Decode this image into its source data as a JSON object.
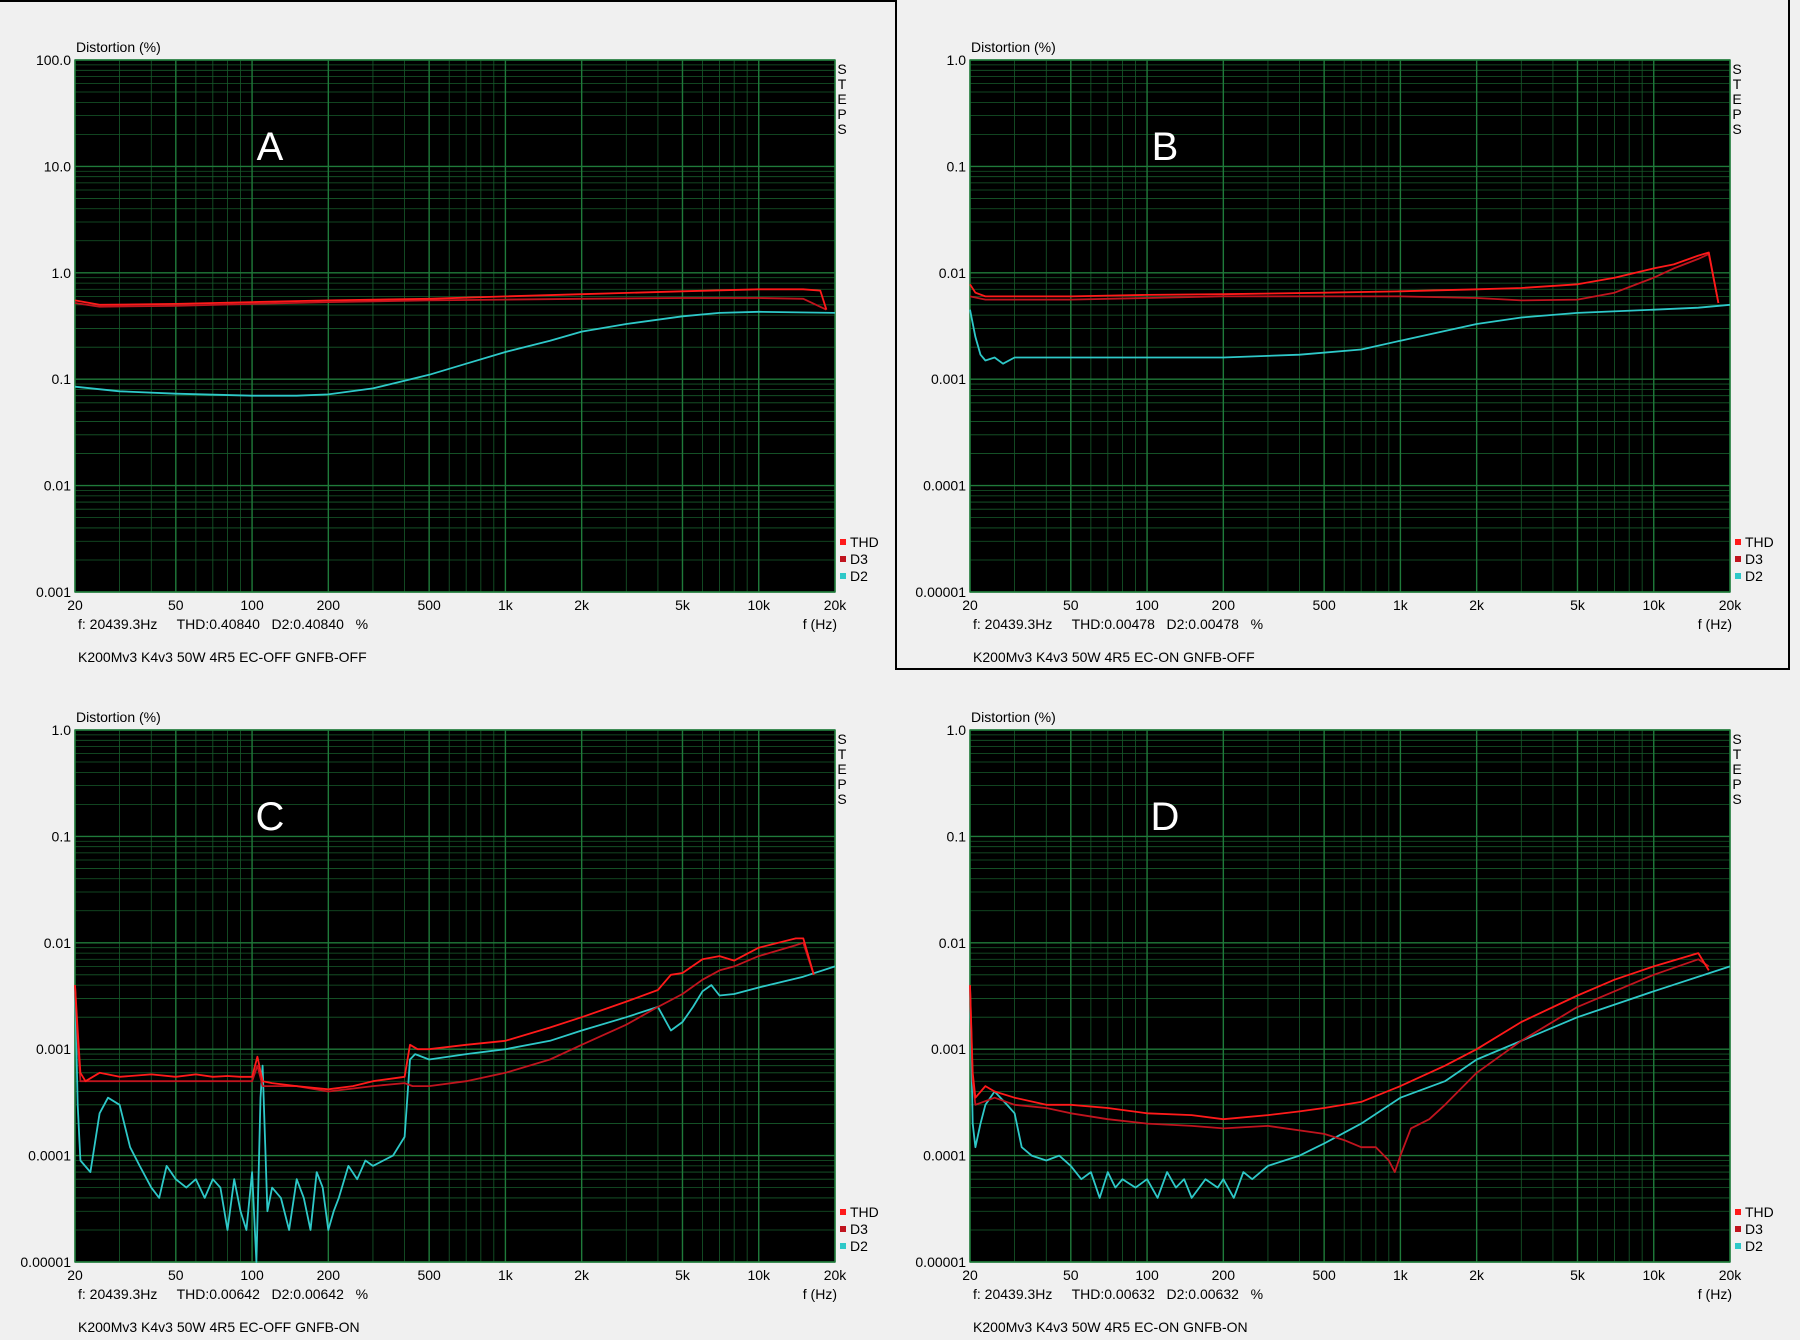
{
  "colors": {
    "plot_bg": "#000000",
    "grid": "#1f7a3a",
    "thd": "#ff1a1a",
    "d3": "#c0141e",
    "d2": "#2ec8c8",
    "frame_text": "#000000",
    "letter": "#ffffff"
  },
  "chart_data": [
    {
      "type": "line",
      "letter": "A",
      "ylabel": "Distortion (%)",
      "xlabel": "f (Hz)",
      "side_label": "STEPS",
      "readout": "f: 20439.3Hz     THD:0.40840   D2:0.40840   %",
      "caption": "K200Mv3 K4v3 50W 4R5 EC-OFF GNFB-OFF",
      "x_scale": "log",
      "y_scale": "log",
      "xlim": [
        20,
        20000
      ],
      "ylim": [
        0.001,
        100
      ],
      "x_ticks": [
        20,
        50,
        100,
        200,
        500,
        1000,
        2000,
        5000,
        10000,
        20000
      ],
      "x_tick_labels": [
        "20",
        "50",
        "100",
        "200",
        "500",
        "1k",
        "2k",
        "5k",
        "10k",
        "20k"
      ],
      "y_ticks": [
        0.001,
        0.01,
        0.1,
        1,
        10,
        100
      ],
      "y_tick_labels": [
        "0.001",
        "0.01",
        "0.1",
        "1.0",
        "10.0",
        "100.0"
      ],
      "legend": [
        "THD",
        "D3",
        "D2"
      ],
      "grid": true,
      "series": [
        {
          "name": "THD",
          "x": [
            20,
            25,
            50,
            100,
            200,
            500,
            1000,
            2000,
            5000,
            10000,
            15000,
            17500,
            18500
          ],
          "y": [
            0.55,
            0.5,
            0.51,
            0.53,
            0.55,
            0.57,
            0.6,
            0.63,
            0.67,
            0.7,
            0.7,
            0.68,
            0.45
          ]
        },
        {
          "name": "D3",
          "x": [
            20,
            25,
            50,
            100,
            200,
            500,
            1000,
            2000,
            5000,
            10000,
            15000,
            18500
          ],
          "y": [
            0.52,
            0.48,
            0.49,
            0.51,
            0.53,
            0.55,
            0.56,
            0.57,
            0.58,
            0.58,
            0.57,
            0.45
          ]
        },
        {
          "name": "D2",
          "x": [
            20,
            30,
            50,
            100,
            150,
            200,
            300,
            500,
            700,
            1000,
            1500,
            2000,
            3000,
            5000,
            7000,
            10000,
            20000
          ],
          "y": [
            0.085,
            0.077,
            0.073,
            0.07,
            0.07,
            0.072,
            0.082,
            0.11,
            0.14,
            0.18,
            0.23,
            0.28,
            0.33,
            0.39,
            0.42,
            0.43,
            0.42
          ]
        }
      ]
    },
    {
      "type": "line",
      "letter": "B",
      "ylabel": "Distortion (%)",
      "xlabel": "f (Hz)",
      "side_label": "STEPS",
      "readout": "f: 20439.3Hz     THD:0.00478   D2:0.00478   %",
      "caption": "K200Mv3 K4v3 50W 4R5 EC-ON GNFB-OFF",
      "x_scale": "log",
      "y_scale": "log",
      "xlim": [
        20,
        20000
      ],
      "ylim": [
        1e-05,
        1
      ],
      "x_ticks": [
        20,
        50,
        100,
        200,
        500,
        1000,
        2000,
        5000,
        10000,
        20000
      ],
      "x_tick_labels": [
        "20",
        "50",
        "100",
        "200",
        "500",
        "1k",
        "2k",
        "5k",
        "10k",
        "20k"
      ],
      "y_ticks": [
        1e-05,
        0.0001,
        0.001,
        0.01,
        0.1,
        1
      ],
      "y_tick_labels": [
        "0.00001",
        "0.0001",
        "0.001",
        "0.01",
        "0.1",
        "1.0"
      ],
      "legend": [
        "THD",
        "D3",
        "D2"
      ],
      "grid": true,
      "series": [
        {
          "name": "THD",
          "x": [
            20,
            21,
            23,
            30,
            50,
            100,
            200,
            500,
            1000,
            2000,
            3000,
            5000,
            7000,
            10000,
            12000,
            15000,
            16500,
            18000
          ],
          "y": [
            0.0078,
            0.0065,
            0.006,
            0.006,
            0.006,
            0.0062,
            0.0063,
            0.0065,
            0.0067,
            0.007,
            0.0072,
            0.0078,
            0.009,
            0.011,
            0.012,
            0.0145,
            0.0155,
            0.0052
          ]
        },
        {
          "name": "D3",
          "x": [
            20,
            23,
            30,
            50,
            100,
            200,
            500,
            1000,
            2000,
            3000,
            5000,
            7000,
            10000,
            12000,
            15000,
            16500,
            18000
          ],
          "y": [
            0.006,
            0.0056,
            0.0056,
            0.0056,
            0.0058,
            0.006,
            0.006,
            0.006,
            0.0058,
            0.0055,
            0.0056,
            0.0065,
            0.009,
            0.011,
            0.0135,
            0.015,
            0.0052
          ]
        },
        {
          "name": "D2",
          "x": [
            20,
            21,
            22,
            23,
            25,
            27,
            30,
            50,
            100,
            200,
            400,
            700,
            1000,
            2000,
            3000,
            5000,
            10000,
            15000,
            20000
          ],
          "y": [
            0.0045,
            0.0025,
            0.0017,
            0.0015,
            0.0016,
            0.0014,
            0.0016,
            0.0016,
            0.0016,
            0.0016,
            0.0017,
            0.0019,
            0.0023,
            0.0033,
            0.0038,
            0.0042,
            0.0045,
            0.0047,
            0.005
          ]
        }
      ]
    },
    {
      "type": "line",
      "letter": "C",
      "ylabel": "Distortion (%)",
      "xlabel": "f (Hz)",
      "side_label": "STEPS",
      "readout": "f: 20439.3Hz     THD:0.00642   D2:0.00642   %",
      "caption": "K200Mv3 K4v3 50W 4R5 EC-OFF GNFB-ON",
      "x_scale": "log",
      "y_scale": "log",
      "xlim": [
        20,
        20000
      ],
      "ylim": [
        1e-05,
        1
      ],
      "x_ticks": [
        20,
        50,
        100,
        200,
        500,
        1000,
        2000,
        5000,
        10000,
        20000
      ],
      "x_tick_labels": [
        "20",
        "50",
        "100",
        "200",
        "500",
        "1k",
        "2k",
        "5k",
        "10k",
        "20k"
      ],
      "y_ticks": [
        1e-05,
        0.0001,
        0.001,
        0.01,
        0.1,
        1
      ],
      "y_tick_labels": [
        "0.00001",
        "0.0001",
        "0.001",
        "0.01",
        "0.1",
        "1.0"
      ],
      "legend": [
        "THD",
        "D3",
        "D2"
      ],
      "grid": true,
      "series": [
        {
          "name": "THD",
          "x": [
            20,
            20.5,
            21,
            22,
            25,
            30,
            40,
            50,
            60,
            70,
            80,
            90,
            100,
            105,
            110,
            120,
            150,
            200,
            250,
            300,
            400,
            420,
            450,
            500,
            700,
            1000,
            1500,
            2000,
            3000,
            4000,
            4500,
            5000,
            6000,
            7000,
            8000,
            10000,
            14000,
            15000,
            16500
          ],
          "y": [
            0.004,
            0.0015,
            0.0006,
            0.0005,
            0.0006,
            0.00055,
            0.00058,
            0.00055,
            0.00058,
            0.00055,
            0.00056,
            0.00055,
            0.00055,
            0.00085,
            0.0005,
            0.00048,
            0.00045,
            0.00042,
            0.00045,
            0.0005,
            0.00055,
            0.0011,
            0.001,
            0.001,
            0.0011,
            0.0012,
            0.0016,
            0.002,
            0.0028,
            0.0036,
            0.005,
            0.0052,
            0.007,
            0.0075,
            0.0068,
            0.009,
            0.011,
            0.011,
            0.005
          ]
        },
        {
          "name": "D3",
          "x": [
            20,
            20.5,
            21,
            25,
            30,
            50,
            80,
            100,
            105,
            110,
            150,
            200,
            300,
            400,
            430,
            500,
            700,
            1000,
            1500,
            2000,
            3000,
            4000,
            5000,
            6000,
            7000,
            8000,
            10000,
            14000,
            15000,
            16500
          ],
          "y": [
            0.004,
            0.0012,
            0.0005,
            0.0005,
            0.0005,
            0.0005,
            0.0005,
            0.0005,
            0.0007,
            0.00045,
            0.00045,
            0.0004,
            0.00045,
            0.00048,
            0.00045,
            0.00045,
            0.0005,
            0.0006,
            0.0008,
            0.0011,
            0.0017,
            0.0025,
            0.0033,
            0.0045,
            0.0055,
            0.006,
            0.0075,
            0.0095,
            0.01,
            0.005
          ]
        },
        {
          "name": "D2",
          "x": [
            20,
            20.5,
            21,
            23,
            25,
            27,
            30,
            33,
            36,
            40,
            43,
            46,
            50,
            55,
            60,
            65,
            70,
            75,
            80,
            85,
            90,
            95,
            100,
            104,
            106,
            108,
            110,
            115,
            120,
            130,
            140,
            150,
            160,
            170,
            180,
            190,
            200,
            210,
            220,
            240,
            260,
            280,
            300,
            330,
            360,
            400,
            420,
            440,
            500,
            700,
            1000,
            1500,
            2000,
            3000,
            4000,
            4500,
            5000,
            5500,
            6000,
            6500,
            7000,
            8000,
            10000,
            15000,
            20000
          ],
          "y": [
            0.004,
            0.0003,
            9e-05,
            7e-05,
            0.00025,
            0.00035,
            0.0003,
            0.00012,
            8e-05,
            5e-05,
            4e-05,
            8e-05,
            6e-05,
            5e-05,
            6e-05,
            4e-05,
            6e-05,
            5e-05,
            2e-05,
            6e-05,
            3e-05,
            2e-05,
            7e-05,
            1e-05,
            6e-05,
            0.00035,
            0.0007,
            3e-05,
            5e-05,
            4e-05,
            2e-05,
            6e-05,
            4e-05,
            2e-05,
            7e-05,
            5e-05,
            2e-05,
            3e-05,
            4e-05,
            8e-05,
            6e-05,
            9e-05,
            8e-05,
            9e-05,
            0.0001,
            0.00015,
            0.0008,
            0.0009,
            0.0008,
            0.0009,
            0.001,
            0.0012,
            0.0015,
            0.002,
            0.0025,
            0.0015,
            0.0018,
            0.0025,
            0.0035,
            0.004,
            0.0032,
            0.0033,
            0.0038,
            0.0048,
            0.006
          ]
        }
      ]
    },
    {
      "type": "line",
      "letter": "D",
      "ylabel": "Distortion (%)",
      "xlabel": "f (Hz)",
      "side_label": "STEPS",
      "readout": "f: 20439.3Hz     THD:0.00632   D2:0.00632   %",
      "caption": "K200Mv3 K4v3 50W 4R5 EC-ON GNFB-ON",
      "x_scale": "log",
      "y_scale": "log",
      "xlim": [
        20,
        20000
      ],
      "ylim": [
        1e-05,
        1
      ],
      "x_ticks": [
        20,
        50,
        100,
        200,
        500,
        1000,
        2000,
        5000,
        10000,
        20000
      ],
      "x_tick_labels": [
        "20",
        "50",
        "100",
        "200",
        "500",
        "1k",
        "2k",
        "5k",
        "10k",
        "20k"
      ],
      "y_ticks": [
        1e-05,
        0.0001,
        0.001,
        0.01,
        0.1,
        1
      ],
      "y_tick_labels": [
        "0.00001",
        "0.0001",
        "0.001",
        "0.01",
        "0.1",
        "1.0"
      ],
      "legend": [
        "THD",
        "D3",
        "D2"
      ],
      "grid": true,
      "series": [
        {
          "name": "THD",
          "x": [
            20,
            20.5,
            21,
            23,
            25,
            30,
            40,
            50,
            70,
            100,
            150,
            200,
            300,
            400,
            500,
            700,
            1000,
            1500,
            2000,
            3000,
            5000,
            7000,
            10000,
            15000,
            16500
          ],
          "y": [
            0.004,
            0.0006,
            0.00035,
            0.00045,
            0.0004,
            0.00035,
            0.0003,
            0.0003,
            0.00028,
            0.00025,
            0.00024,
            0.00022,
            0.00024,
            0.00026,
            0.00028,
            0.00032,
            0.00045,
            0.0007,
            0.001,
            0.0018,
            0.0032,
            0.0045,
            0.006,
            0.008,
            0.0055
          ]
        },
        {
          "name": "D3",
          "x": [
            20,
            20.5,
            21,
            25,
            30,
            40,
            50,
            70,
            100,
            150,
            200,
            300,
            500,
            600,
            700,
            800,
            900,
            950,
            1000,
            1100,
            1300,
            1500,
            2000,
            3000,
            5000,
            7000,
            10000,
            15000,
            16500
          ],
          "y": [
            0.004,
            0.0005,
            0.0003,
            0.00035,
            0.0003,
            0.00028,
            0.00025,
            0.00022,
            0.0002,
            0.00019,
            0.00018,
            0.00019,
            0.00016,
            0.00014,
            0.00012,
            0.00012,
            9e-05,
            7e-05,
            0.0001,
            0.00018,
            0.00022,
            0.0003,
            0.0006,
            0.0012,
            0.0025,
            0.0035,
            0.005,
            0.007,
            0.006
          ]
        },
        {
          "name": "D2",
          "x": [
            20,
            20.5,
            21,
            22,
            23,
            25,
            28,
            30,
            32,
            35,
            40,
            45,
            50,
            55,
            60,
            65,
            70,
            75,
            80,
            90,
            100,
            110,
            120,
            130,
            140,
            150,
            170,
            190,
            200,
            220,
            240,
            260,
            300,
            400,
            500,
            700,
            1000,
            1500,
            2000,
            3000,
            5000,
            10000,
            20000
          ],
          "y": [
            0.004,
            0.0002,
            0.00012,
            0.0002,
            0.0003,
            0.0004,
            0.0003,
            0.00025,
            0.00012,
            0.0001,
            9e-05,
            0.0001,
            8e-05,
            6e-05,
            7e-05,
            4e-05,
            7e-05,
            5e-05,
            6e-05,
            5e-05,
            6e-05,
            4e-05,
            7e-05,
            5e-05,
            6e-05,
            4e-05,
            6e-05,
            5e-05,
            6e-05,
            4e-05,
            7e-05,
            6e-05,
            8e-05,
            0.0001,
            0.00013,
            0.0002,
            0.00035,
            0.0005,
            0.0008,
            0.0012,
            0.002,
            0.0035,
            0.006
          ]
        }
      ]
    }
  ]
}
